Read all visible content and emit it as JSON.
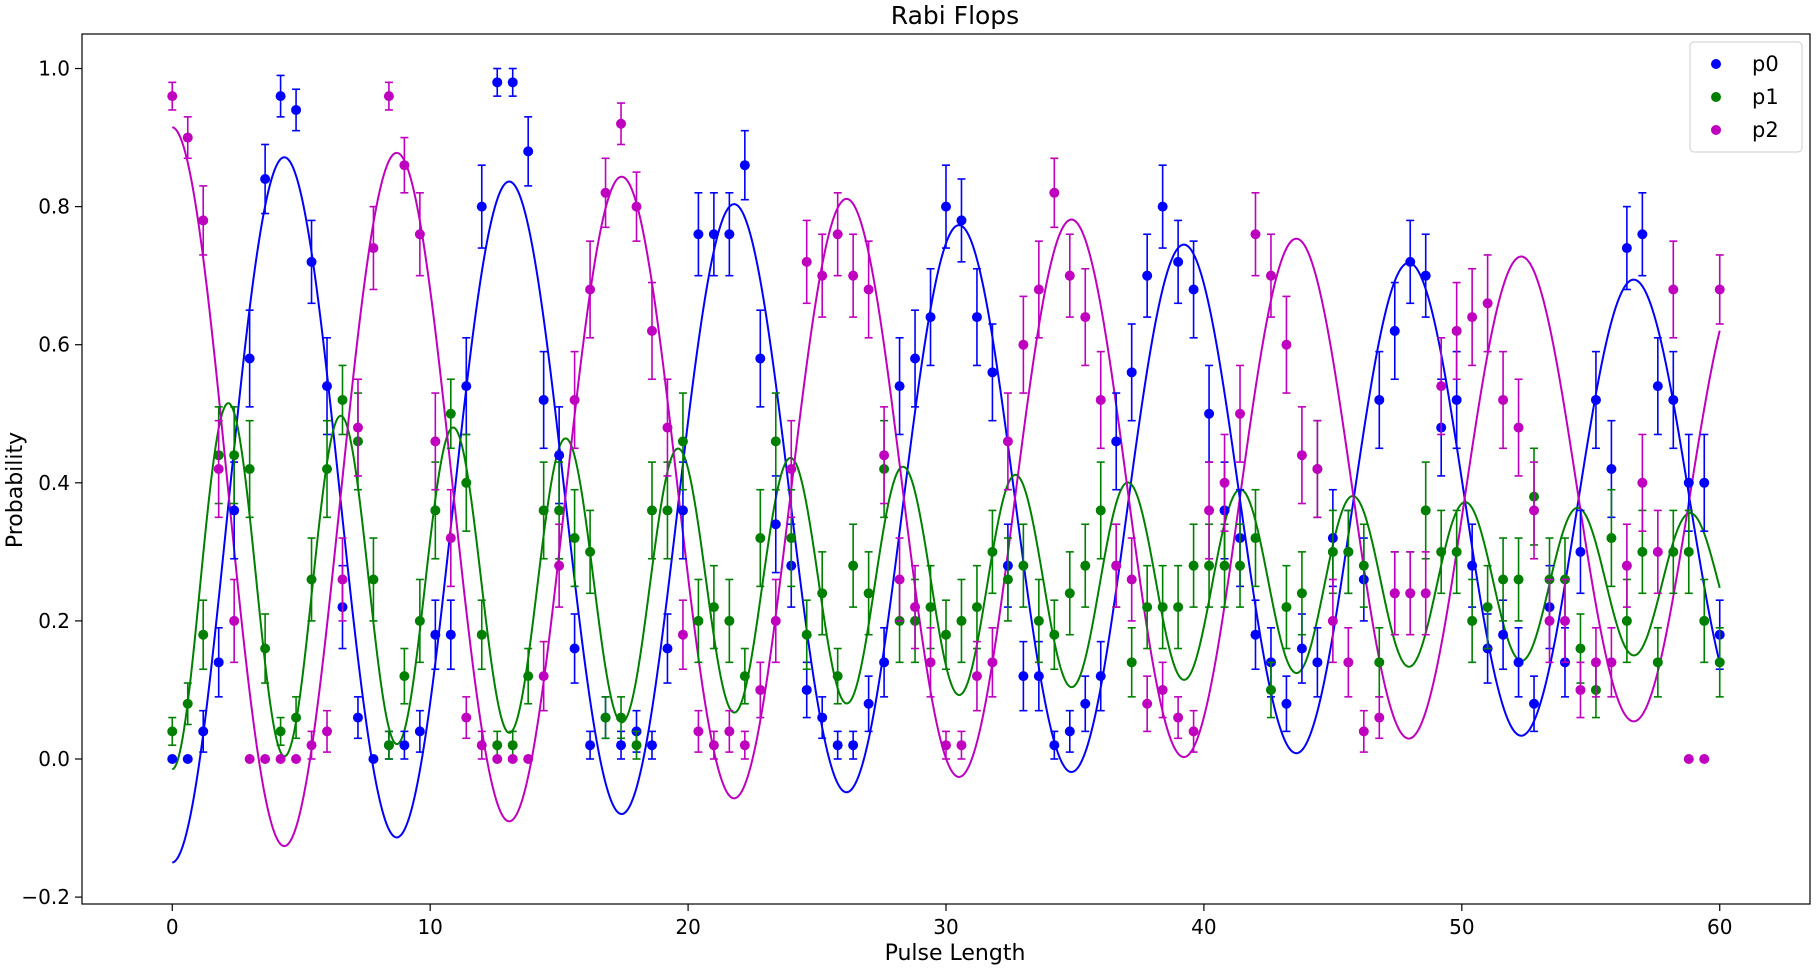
{
  "chart_data": {
    "type": "scatter",
    "title": "Rabi Flops",
    "xlabel": "Pulse Length",
    "ylabel": "Probability",
    "xlim": [
      -3.5,
      63.5
    ],
    "ylim": [
      -0.21,
      1.05
    ],
    "xticks": [
      0,
      10,
      20,
      30,
      40,
      50,
      60
    ],
    "yticks": [
      -0.2,
      0.0,
      0.2,
      0.4,
      0.6,
      0.8,
      1.0
    ],
    "ytick_labels": [
      "−0.2",
      "0.0",
      "0.2",
      "0.4",
      "0.6",
      "0.8",
      "1.0"
    ],
    "xtick_labels": [
      "0",
      "10",
      "20",
      "30",
      "40",
      "50",
      "60"
    ],
    "grid": false,
    "legend_position": "top-right",
    "x": [
      0,
      0.6,
      1.2,
      1.8,
      2.4,
      3.0,
      3.6,
      4.2,
      4.8,
      5.4,
      6.0,
      6.6,
      7.2,
      7.8,
      8.4,
      9.0,
      9.6,
      10.2,
      10.8,
      11.4,
      12.0,
      12.6,
      13.2,
      13.8,
      14.4,
      15.0,
      15.6,
      16.2,
      16.8,
      17.4,
      18.0,
      18.6,
      19.2,
      19.8,
      20.4,
      21.0,
      21.6,
      22.2,
      22.8,
      23.4,
      24.0,
      24.6,
      25.2,
      25.8,
      26.4,
      27.0,
      27.6,
      28.2,
      28.8,
      29.4,
      30.0,
      30.6,
      31.2,
      31.8,
      32.4,
      33.0,
      33.6,
      34.2,
      34.8,
      35.4,
      36.0,
      36.6,
      37.2,
      37.8,
      38.4,
      39.0,
      39.6,
      40.2,
      40.8,
      41.4,
      42.0,
      42.6,
      43.2,
      43.8,
      44.4,
      45.0,
      45.6,
      46.2,
      46.8,
      47.4,
      48.0,
      48.6,
      49.2,
      49.8,
      50.4,
      51.0,
      51.6,
      52.2,
      52.8,
      53.4,
      54.0,
      54.6,
      55.2,
      55.8,
      56.4,
      57.0,
      57.6,
      58.2,
      58.8,
      59.4,
      60.0
    ],
    "series": [
      {
        "name": "p0",
        "color": "#0000ff",
        "values": [
          0.0,
          0.0,
          0.04,
          0.14,
          0.36,
          0.58,
          0.84,
          0.96,
          0.94,
          0.72,
          0.54,
          0.22,
          0.06,
          0.0,
          0.02,
          0.02,
          0.04,
          0.18,
          0.18,
          0.54,
          0.8,
          0.98,
          0.98,
          0.88,
          0.52,
          0.44,
          0.16,
          0.02,
          0.06,
          0.02,
          0.04,
          0.02,
          0.16,
          0.36,
          0.76,
          0.76,
          0.76,
          0.86,
          0.58,
          0.34,
          0.28,
          0.1,
          0.06,
          0.02,
          0.02,
          0.08,
          0.14,
          0.54,
          0.58,
          0.64,
          0.8,
          0.78,
          0.64,
          0.56,
          0.28,
          0.12,
          0.12,
          0.02,
          0.04,
          0.08,
          0.12,
          0.46,
          0.56,
          0.7,
          0.8,
          0.72,
          0.68,
          0.5,
          0.36,
          0.32,
          0.18,
          0.14,
          0.08,
          0.16,
          0.14,
          0.32,
          0.3,
          0.26,
          0.52,
          0.62,
          0.72,
          0.7,
          0.48,
          0.52,
          0.28,
          0.16,
          0.18,
          0.14,
          0.08,
          0.22,
          0.14,
          0.3,
          0.52,
          0.42,
          0.74,
          0.76,
          0.54,
          0.52,
          0.4,
          0.4,
          0.18
        ],
        "errors": [
          0.0,
          0.0,
          0.03,
          0.05,
          0.07,
          0.07,
          0.05,
          0.03,
          0.03,
          0.06,
          0.07,
          0.06,
          0.03,
          0.0,
          0.02,
          0.02,
          0.03,
          0.05,
          0.05,
          0.07,
          0.06,
          0.02,
          0.02,
          0.05,
          0.07,
          0.07,
          0.05,
          0.02,
          0.03,
          0.02,
          0.03,
          0.02,
          0.05,
          0.07,
          0.06,
          0.06,
          0.06,
          0.05,
          0.07,
          0.07,
          0.06,
          0.04,
          0.03,
          0.02,
          0.02,
          0.04,
          0.05,
          0.07,
          0.07,
          0.07,
          0.06,
          0.06,
          0.07,
          0.07,
          0.06,
          0.05,
          0.05,
          0.02,
          0.03,
          0.04,
          0.05,
          0.07,
          0.07,
          0.06,
          0.06,
          0.06,
          0.07,
          0.07,
          0.07,
          0.07,
          0.05,
          0.05,
          0.04,
          0.05,
          0.05,
          0.07,
          0.06,
          0.06,
          0.07,
          0.07,
          0.06,
          0.06,
          0.07,
          0.07,
          0.06,
          0.05,
          0.05,
          0.05,
          0.04,
          0.06,
          0.05,
          0.06,
          0.07,
          0.07,
          0.06,
          0.06,
          0.07,
          0.07,
          0.07,
          0.07,
          0.05
        ]
      },
      {
        "name": "p1",
        "color": "#008000",
        "values": [
          0.04,
          0.08,
          0.18,
          0.44,
          0.44,
          0.42,
          0.16,
          0.04,
          0.06,
          0.26,
          0.42,
          0.52,
          0.46,
          0.26,
          0.02,
          0.12,
          0.2,
          0.36,
          0.5,
          0.4,
          0.18,
          0.02,
          0.02,
          0.12,
          0.36,
          0.36,
          0.32,
          0.3,
          0.06,
          0.06,
          0.02,
          0.36,
          0.36,
          0.46,
          0.2,
          0.22,
          0.2,
          0.12,
          0.32,
          0.46,
          0.32,
          0.18,
          0.24,
          0.12,
          0.28,
          0.24,
          0.42,
          0.2,
          0.2,
          0.22,
          0.18,
          0.2,
          0.22,
          0.3,
          0.26,
          0.28,
          0.2,
          0.18,
          0.24,
          0.28,
          0.36,
          0.28,
          0.14,
          0.22,
          0.22,
          0.22,
          0.28,
          0.28,
          0.28,
          0.28,
          0.32,
          0.1,
          0.22,
          0.24,
          0.42,
          0.3,
          0.3,
          0.28,
          0.14,
          0.24,
          0.24,
          0.36,
          0.3,
          0.3,
          0.2,
          0.22,
          0.26,
          0.26,
          0.38,
          0.26,
          0.26,
          0.16,
          0.1,
          0.32,
          0.2,
          0.3,
          0.14,
          0.3,
          0.3,
          0.2,
          0.14
        ],
        "errors": [
          0.02,
          0.03,
          0.05,
          0.07,
          0.07,
          0.07,
          0.05,
          0.02,
          0.03,
          0.06,
          0.07,
          0.05,
          0.07,
          0.06,
          0.02,
          0.04,
          0.06,
          0.07,
          0.05,
          0.07,
          0.05,
          0.02,
          0.02,
          0.04,
          0.07,
          0.07,
          0.07,
          0.06,
          0.03,
          0.03,
          0.02,
          0.07,
          0.07,
          0.07,
          0.06,
          0.06,
          0.06,
          0.04,
          0.07,
          0.07,
          0.07,
          0.05,
          0.06,
          0.04,
          0.06,
          0.06,
          0.07,
          0.06,
          0.06,
          0.06,
          0.05,
          0.06,
          0.06,
          0.06,
          0.06,
          0.06,
          0.06,
          0.05,
          0.06,
          0.06,
          0.07,
          0.06,
          0.05,
          0.06,
          0.06,
          0.06,
          0.06,
          0.06,
          0.06,
          0.06,
          0.07,
          0.04,
          0.06,
          0.06,
          0.07,
          0.06,
          0.06,
          0.06,
          0.05,
          0.06,
          0.06,
          0.07,
          0.06,
          0.06,
          0.06,
          0.06,
          0.06,
          0.06,
          0.07,
          0.06,
          0.06,
          0.05,
          0.04,
          0.07,
          0.06,
          0.06,
          0.05,
          0.06,
          0.06,
          0.06,
          0.05
        ]
      },
      {
        "name": "p2",
        "color": "#bf00bf",
        "values": [
          0.96,
          0.9,
          0.78,
          0.42,
          0.2,
          0.0,
          0.0,
          0.0,
          0.0,
          0.02,
          0.04,
          0.26,
          0.48,
          0.74,
          0.96,
          0.86,
          0.76,
          0.46,
          0.32,
          0.06,
          0.02,
          0.0,
          0.0,
          0.0,
          0.12,
          0.28,
          0.52,
          0.68,
          0.82,
          0.92,
          0.8,
          0.62,
          0.48,
          0.18,
          0.04,
          0.02,
          0.04,
          0.02,
          0.1,
          0.2,
          0.42,
          0.72,
          0.7,
          0.76,
          0.7,
          0.68,
          0.44,
          0.26,
          0.22,
          0.14,
          0.02,
          0.02,
          0.12,
          0.14,
          0.46,
          0.6,
          0.68,
          0.82,
          0.7,
          0.64,
          0.52,
          0.28,
          0.26,
          0.08,
          0.1,
          0.06,
          0.04,
          0.36,
          0.4,
          0.5,
          0.76,
          0.7,
          0.6,
          0.44,
          0.42,
          0.2,
          0.14,
          0.04,
          0.06,
          0.24,
          0.24,
          0.24,
          0.54,
          0.62,
          0.64,
          0.66,
          0.52,
          0.48,
          0.36,
          0.2,
          0.2,
          0.1,
          0.14,
          0.14,
          0.28,
          0.4,
          0.3,
          0.68,
          0.0,
          0.0,
          0.68
        ],
        "errors": [
          0.02,
          0.03,
          0.05,
          0.07,
          0.06,
          0.0,
          0.0,
          0.0,
          0.0,
          0.02,
          0.03,
          0.06,
          0.07,
          0.06,
          0.02,
          0.04,
          0.06,
          0.07,
          0.07,
          0.03,
          0.02,
          0.0,
          0.0,
          0.0,
          0.05,
          0.06,
          0.07,
          0.07,
          0.05,
          0.03,
          0.05,
          0.07,
          0.07,
          0.05,
          0.03,
          0.02,
          0.03,
          0.02,
          0.04,
          0.06,
          0.07,
          0.06,
          0.06,
          0.06,
          0.06,
          0.07,
          0.07,
          0.06,
          0.06,
          0.05,
          0.02,
          0.02,
          0.05,
          0.05,
          0.07,
          0.07,
          0.07,
          0.05,
          0.06,
          0.07,
          0.07,
          0.06,
          0.06,
          0.04,
          0.04,
          0.03,
          0.03,
          0.07,
          0.07,
          0.07,
          0.06,
          0.06,
          0.07,
          0.07,
          0.07,
          0.06,
          0.05,
          0.03,
          0.03,
          0.06,
          0.06,
          0.06,
          0.07,
          0.07,
          0.07,
          0.07,
          0.07,
          0.07,
          0.07,
          0.06,
          0.06,
          0.04,
          0.05,
          0.05,
          0.06,
          0.07,
          0.06,
          0.07,
          0.0,
          0.0,
          0.05
        ]
      }
    ],
    "fits": [
      {
        "series": "p0",
        "color": "#0000ff",
        "form": "offset - amplitude*exp(-x/tau)*cos(2*pi*x/period)",
        "offset": 0.37,
        "amplitude": 0.52,
        "tau": 120,
        "period": 8.72,
        "phase": 0.0
      },
      {
        "series": "p1",
        "color": "#008000",
        "form": "offset - amplitude*exp(-x/tau)*cos(4*pi*x/period)",
        "offset": 0.255,
        "amplitude": 0.27,
        "tau": 60,
        "period": 8.72,
        "phase": 0.0
      },
      {
        "series": "p2",
        "color": "#bf00bf",
        "form": "offset + amplitude*exp(-x/tau)*cos(2*pi*x/period)",
        "offset": 0.385,
        "amplitude": 0.53,
        "tau": 120,
        "period": 8.72,
        "phase": 0.0
      }
    ]
  }
}
